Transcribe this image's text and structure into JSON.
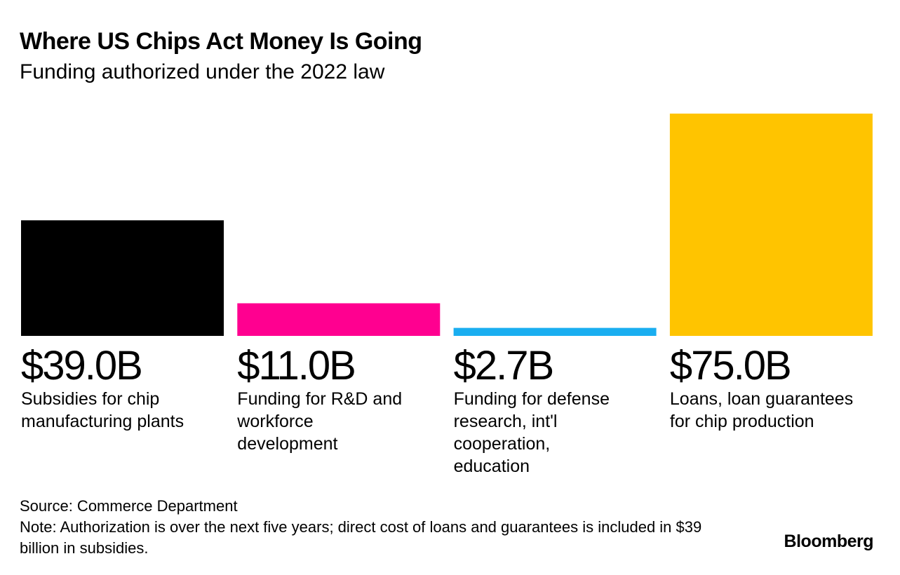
{
  "header": {
    "title": "Where US Chips Act Money Is Going",
    "subtitle": "Funding authorized under the 2022 law"
  },
  "chart_data": {
    "type": "bar",
    "title": "Where US Chips Act Money Is Going",
    "subtitle": "Funding authorized under the 2022 law",
    "unit": "$B",
    "categories": [
      "Subsidies for chip manufacturing plants",
      "Funding for R&D and workforce development",
      "Funding for defense research, int'l cooperation, education",
      "Loans, loan guarantees for chip production"
    ],
    "values": [
      39.0,
      11.0,
      2.7,
      75.0
    ],
    "value_labels": [
      "$39.0B",
      "$11.0B",
      "$2.7B",
      "$75.0B"
    ],
    "description_lines": [
      [
        "Subsidies for chip",
        "manufacturing plants"
      ],
      [
        "Funding for R&D and",
        "workforce",
        "development"
      ],
      [
        "Funding for defense",
        "research, int'l",
        "cooperation,",
        "education"
      ],
      [
        "Loans, loan guarantees",
        "for chip production"
      ]
    ],
    "colors": [
      "#000000",
      "#ff0090",
      "#1aaef0",
      "#ffc400"
    ],
    "ylim": [
      0,
      75
    ],
    "grid": false,
    "legend": "none"
  },
  "footer": {
    "source": "Source: Commerce Department",
    "note": "Note: Authorization is over the next five years; direct cost of loans and guarantees is included in $39 billion in subsidies."
  },
  "branding": {
    "logo_text": "Bloomberg"
  }
}
